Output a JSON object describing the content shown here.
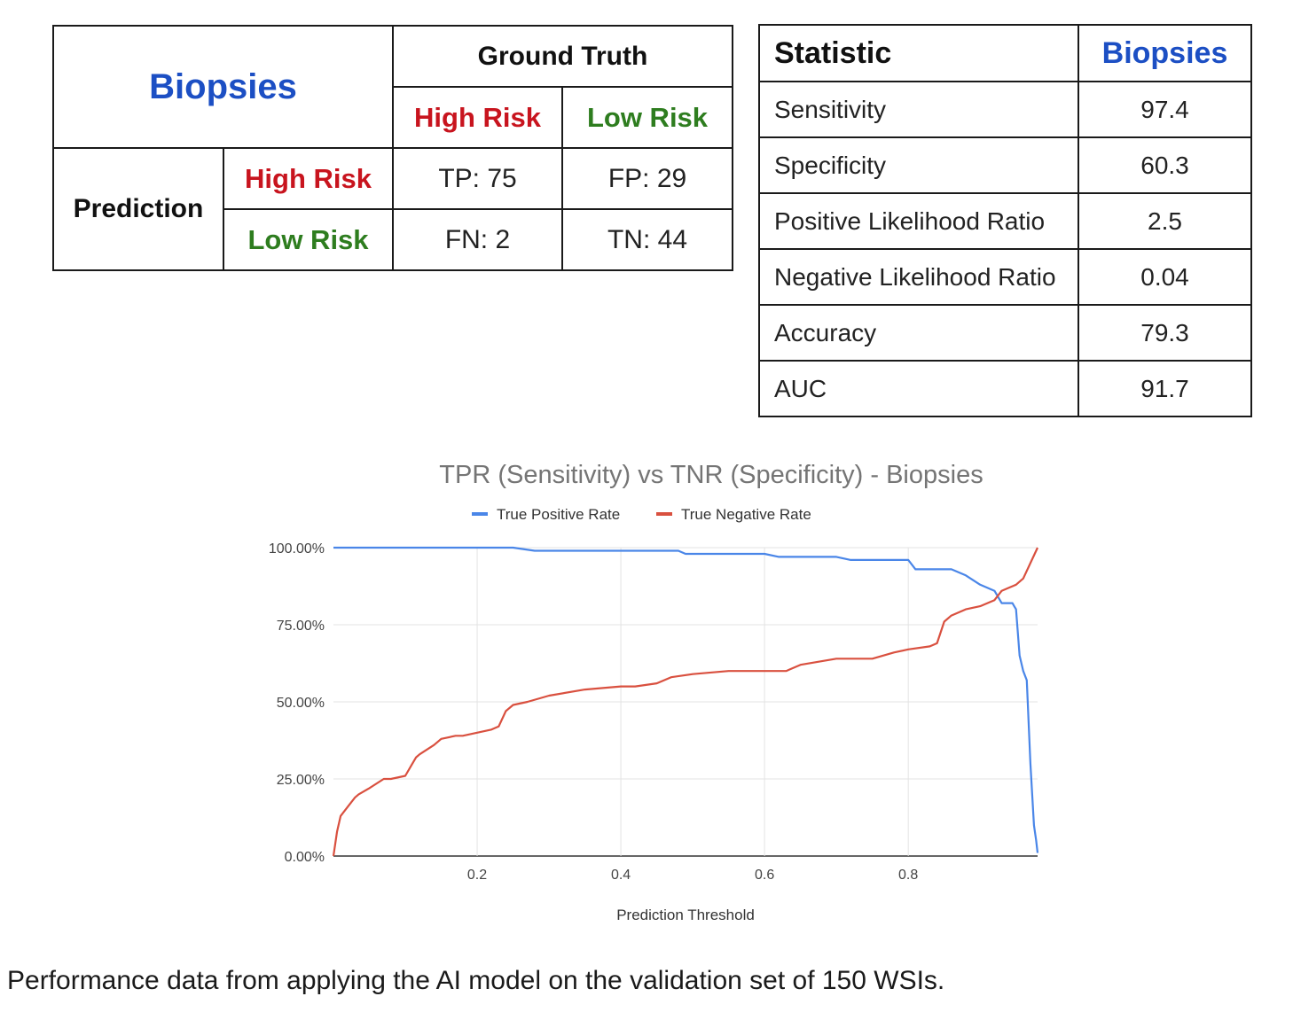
{
  "confusion_matrix": {
    "title": "Biopsies",
    "ground_truth_label": "Ground Truth",
    "prediction_label": "Prediction",
    "high_risk_label": "High Risk",
    "low_risk_label": "Low Risk",
    "tp": "TP: 75",
    "fp": "FP: 29",
    "fn": "FN: 2",
    "tn": "TN: 44",
    "colors": {
      "title": "#1c4fc4",
      "high_risk": "#c8141e",
      "low_risk": "#2e7d1f"
    }
  },
  "stats_table": {
    "header_statistic": "Statistic",
    "header_value": "Biopsies",
    "rows": [
      {
        "name": "Sensitivity",
        "value": "97.4"
      },
      {
        "name": "Specificity",
        "value": "60.3"
      },
      {
        "name": "Positive Likelihood Ratio",
        "value": "2.5"
      },
      {
        "name": "Negative Likelihood Ratio",
        "value": "0.04"
      },
      {
        "name": "Accuracy",
        "value": "79.3"
      },
      {
        "name": "AUC",
        "value": "91.7"
      }
    ]
  },
  "chart_data": {
    "type": "line",
    "title": "TPR (Sensitivity) vs TNR (Specificity) - Biopsies",
    "xlabel": "Prediction Threshold",
    "ylabel": "",
    "xlim": [
      0.0,
      0.98
    ],
    "ylim": [
      0,
      100
    ],
    "x_ticks": [
      0.2,
      0.4,
      0.6,
      0.8
    ],
    "x_tick_labels": [
      "0.2",
      "0.4",
      "0.6",
      "0.8"
    ],
    "y_ticks": [
      0,
      25,
      50,
      75,
      100
    ],
    "y_tick_labels": [
      "0.00%",
      "25.00%",
      "50.00%",
      "75.00%",
      "100.00%"
    ],
    "grid": true,
    "legend_position": "top",
    "series": [
      {
        "name": "True Positive Rate",
        "color": "#4a86e8",
        "x": [
          0.0,
          0.25,
          0.28,
          0.48,
          0.49,
          0.6,
          0.62,
          0.7,
          0.72,
          0.8,
          0.81,
          0.86,
          0.88,
          0.9,
          0.92,
          0.93,
          0.94,
          0.945,
          0.95,
          0.955,
          0.96,
          0.965,
          0.97,
          0.975,
          0.978,
          0.98
        ],
        "y": [
          100,
          100,
          99,
          99,
          98,
          98,
          97,
          97,
          96,
          96,
          93,
          93,
          91,
          88,
          86,
          82,
          82,
          82,
          80,
          65,
          60,
          57,
          30,
          10,
          5,
          1
        ]
      },
      {
        "name": "True Negative Rate",
        "color": "#d9503f",
        "x": [
          0.0,
          0.005,
          0.01,
          0.02,
          0.03,
          0.035,
          0.05,
          0.07,
          0.08,
          0.1,
          0.11,
          0.115,
          0.12,
          0.14,
          0.15,
          0.17,
          0.18,
          0.2,
          0.22,
          0.23,
          0.24,
          0.25,
          0.27,
          0.3,
          0.35,
          0.4,
          0.42,
          0.45,
          0.47,
          0.5,
          0.55,
          0.6,
          0.63,
          0.65,
          0.7,
          0.75,
          0.78,
          0.8,
          0.83,
          0.84,
          0.85,
          0.86,
          0.88,
          0.9,
          0.92,
          0.93,
          0.94,
          0.95,
          0.96,
          0.97,
          0.98
        ],
        "y": [
          0,
          8,
          13,
          16,
          19,
          20,
          22,
          25,
          25,
          26,
          30,
          32,
          33,
          36,
          38,
          39,
          39,
          40,
          41,
          42,
          47,
          49,
          50,
          52,
          54,
          55,
          55,
          56,
          58,
          59,
          60,
          60,
          60,
          62,
          64,
          64,
          66,
          67,
          68,
          69,
          76,
          78,
          80,
          81,
          83,
          86,
          87,
          88,
          90,
          95,
          100
        ]
      }
    ]
  },
  "caption": "Performance data from applying the AI model on the validation set of 150 WSIs."
}
